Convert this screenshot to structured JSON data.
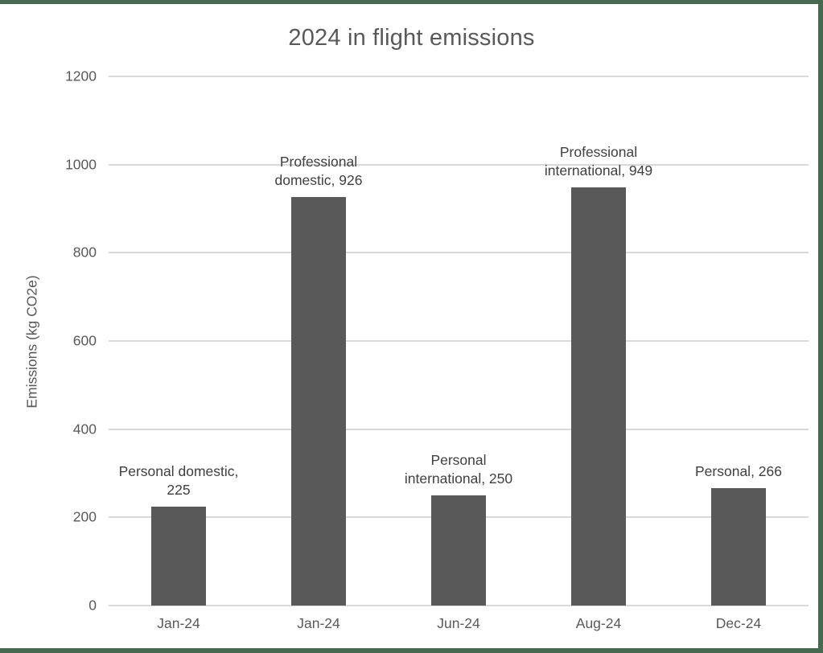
{
  "chart_data": {
    "type": "bar",
    "title": "2024 in flight emissions",
    "xlabel": "",
    "ylabel": "Emissions (kg CO2e)",
    "categories": [
      "Jan-24",
      "Jan-24",
      "Jun-24",
      "Aug-24",
      "Dec-24"
    ],
    "values": [
      225,
      926,
      250,
      949,
      266
    ],
    "data_label_lines": [
      [
        "Personal domestic,",
        "225"
      ],
      [
        "Professional",
        "domestic, 926"
      ],
      [
        "Personal",
        "international, 250"
      ],
      [
        "Professional",
        "international, 949"
      ],
      [
        "Personal, 266"
      ]
    ],
    "ylim": [
      0,
      1200
    ],
    "yticks": [
      0,
      200,
      400,
      600,
      800,
      1000,
      1200
    ],
    "grid": true,
    "legend": "none",
    "colors": {
      "bar": "#595959",
      "gridline": "#d9d9d9",
      "title_text": "#595959",
      "axis_text": "#595959",
      "data_label_text": "#3f3f3f",
      "frame_border": "#46694f",
      "background": "#ffffff"
    }
  }
}
